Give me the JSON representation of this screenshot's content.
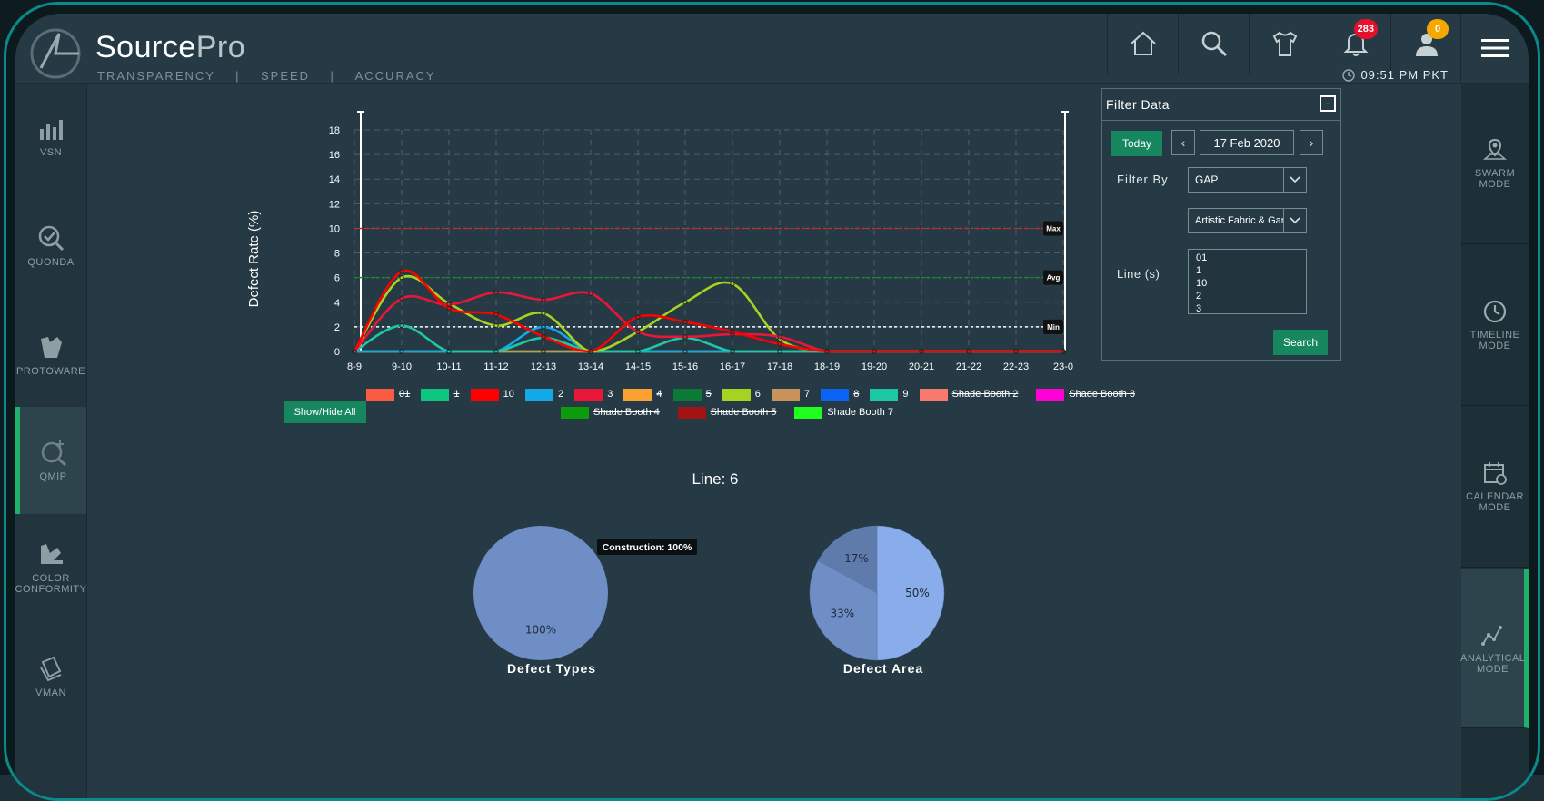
{
  "app": {
    "brand_main": "Source",
    "brand_pro": "Pro",
    "tagline": "TRANSPARENCY    |    SPEED    |    ACCURACY",
    "clock": "09:51 PM PKT"
  },
  "header": {
    "notifications_count": "283",
    "user_badge": "0"
  },
  "left_nav": [
    {
      "label": "VSN"
    },
    {
      "label": "QUONDA"
    },
    {
      "label": "PROTOWARE"
    },
    {
      "label": "QMIP"
    },
    {
      "label": "COLOR CONFORMITY"
    },
    {
      "label": "VMAN"
    }
  ],
  "right_nav": [
    {
      "label": "SWARM MODE"
    },
    {
      "label": "TIMELINE MODE"
    },
    {
      "label": "CALENDAR MODE"
    },
    {
      "label": "ANALYTICAL MODE"
    }
  ],
  "filter": {
    "title": "Filter Data",
    "today_label": "Today",
    "date": "17 Feb 2020",
    "filter_by_label": "Filter By",
    "filter_by_value": "GAP",
    "vendor_value": "Artistic Fabric & Garm",
    "lines_label": "Line (s)",
    "lines": [
      "01",
      "1",
      "10",
      "2",
      "3"
    ],
    "search_label": "Search"
  },
  "show_hide_label": "Show/Hide All",
  "line_title": "Line: 6",
  "chart_data": [
    {
      "type": "line",
      "ylabel": "Defect Rate (%)",
      "ylim": [
        0,
        18
      ],
      "yticks": [
        0,
        2,
        4,
        6,
        8,
        10,
        12,
        14,
        16,
        18
      ],
      "categories": [
        "8-9",
        "9-10",
        "10-11",
        "11-12",
        "12-13",
        "13-14",
        "14-15",
        "15-16",
        "16-17",
        "17-18",
        "18-19",
        "19-20",
        "20-21",
        "21-22",
        "22-23",
        "23-0"
      ],
      "reference_lines": [
        {
          "label": "Max",
          "value": 10,
          "color": "#e02020"
        },
        {
          "label": "Avg",
          "value": 6,
          "color": "#1a8a2a"
        },
        {
          "label": "Min",
          "value": 2,
          "color": "#ffffff"
        }
      ],
      "series": [
        {
          "name": "10",
          "color": "#ff0000",
          "values": [
            0,
            6.5,
            3.5,
            3,
            1.2,
            0,
            2.8,
            2.4,
            1.6,
            0.6,
            0,
            0,
            0,
            0,
            0,
            0
          ]
        },
        {
          "name": "3",
          "color": "#e8173a",
          "values": [
            0,
            4.3,
            3.8,
            4.8,
            4.2,
            4.7,
            1.6,
            1.2,
            1.4,
            1.2,
            0,
            0,
            0,
            0,
            0,
            0
          ]
        },
        {
          "name": "6",
          "color": "#a7d320",
          "values": [
            0,
            6,
            3.9,
            2.1,
            3.1,
            0,
            1.6,
            4,
            5.5,
            1,
            0,
            0,
            0,
            0,
            0,
            0
          ]
        },
        {
          "name": "9",
          "color": "#1ec7a4",
          "values": [
            0,
            2.1,
            0,
            0,
            1.1,
            0,
            0,
            1.1,
            0,
            0,
            0,
            0,
            0,
            0,
            0,
            0
          ]
        },
        {
          "name": "2",
          "color": "#13a8e8",
          "values": [
            0,
            0,
            0,
            0,
            2,
            0,
            0,
            0,
            0,
            0,
            0,
            0,
            0,
            0,
            0,
            0
          ]
        },
        {
          "name": "7",
          "color": "#c8935a",
          "values": [
            0,
            0,
            0,
            0,
            0,
            0,
            0,
            0,
            0,
            0,
            0,
            0,
            0,
            0,
            0,
            0
          ]
        },
        {
          "name": "Shade Booth 7",
          "color": "#21ff20",
          "values": [
            0,
            0,
            0,
            0,
            0,
            0,
            0,
            0,
            0,
            0,
            0,
            0,
            0,
            0,
            0,
            0
          ]
        }
      ],
      "legend": [
        {
          "name": "01",
          "color": "#fc5b43",
          "hidden": true
        },
        {
          "name": "1",
          "color": "#0fc681",
          "hidden": true
        },
        {
          "name": "10",
          "color": "#ff0000",
          "hidden": false
        },
        {
          "name": "2",
          "color": "#13a8e8",
          "hidden": false
        },
        {
          "name": "3",
          "color": "#e8173a",
          "hidden": false
        },
        {
          "name": "4",
          "color": "#fba132",
          "hidden": true
        },
        {
          "name": "5",
          "color": "#0b7a36",
          "hidden": true
        },
        {
          "name": "6",
          "color": "#a7d320",
          "hidden": false
        },
        {
          "name": "7",
          "color": "#c8935a",
          "hidden": false
        },
        {
          "name": "8",
          "color": "#0a63f4",
          "hidden": true
        },
        {
          "name": "9",
          "color": "#1ec7a4",
          "hidden": false
        },
        {
          "name": "Shade Booth 2",
          "color": "#f87a6d",
          "hidden": true
        },
        {
          "name": "Shade Booth 3",
          "color": "#ff00d6",
          "hidden": true
        },
        {
          "name": "Shade Booth 4",
          "color": "#0a9c0a",
          "hidden": true
        },
        {
          "name": "Shade Booth 5",
          "color": "#a01414",
          "hidden": true
        },
        {
          "name": "Shade Booth 7",
          "color": "#21ff20",
          "hidden": false
        }
      ]
    },
    {
      "type": "pie",
      "title": "Defect Types",
      "slices": [
        {
          "label": "Construction",
          "value": 100
        }
      ],
      "labels": [
        "100%"
      ],
      "tooltip": "Construction: 100%",
      "colors": [
        "#6f8ec6"
      ]
    },
    {
      "type": "pie",
      "title": "Defect Area",
      "slices": [
        {
          "value": 50
        },
        {
          "value": 33
        },
        {
          "value": 17
        }
      ],
      "labels": [
        "50%",
        "33%",
        "17%"
      ],
      "colors": [
        "#89acea",
        "#6f8ec6",
        "#5f7bab"
      ]
    }
  ]
}
